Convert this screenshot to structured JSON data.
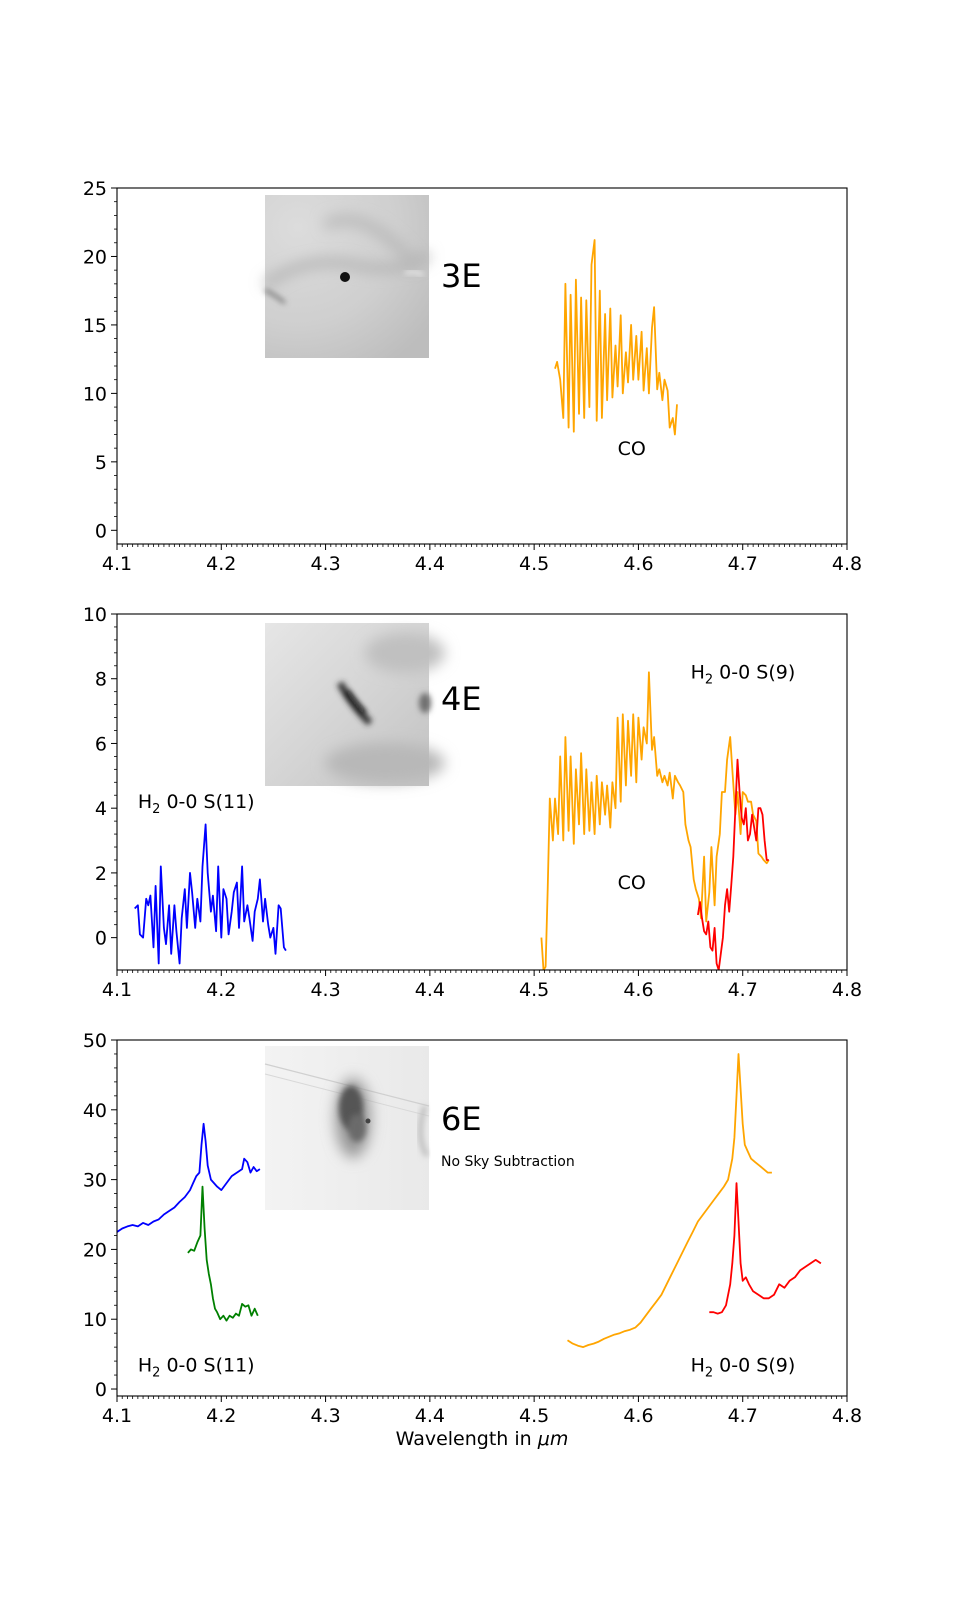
{
  "xlabel_prefix": "Wavelength in ",
  "xlabel_unit": "μm",
  "colors": {
    "orange": "#ffa500",
    "blue": "#0000ff",
    "red": "#ff0000",
    "green": "#008000"
  },
  "chart_data": [
    {
      "type": "line",
      "panel": "3E",
      "xlim": [
        4.1,
        4.8
      ],
      "ylim": [
        -1,
        25
      ],
      "xticks": [
        "4.1",
        "4.2",
        "4.3",
        "4.4",
        "4.5",
        "4.6",
        "4.7",
        "4.8"
      ],
      "yticks": [
        "0",
        "5",
        "10",
        "15",
        "20",
        "25"
      ],
      "label": "3E",
      "note": "",
      "annotations": [
        {
          "key": "co",
          "text": "CO",
          "x": 4.58,
          "y": 5.5
        }
      ],
      "series": [
        {
          "name": "CO",
          "color": "orange",
          "x": [
            4.52,
            4.522,
            4.525,
            4.528,
            4.53,
            4.533,
            4.535,
            4.538,
            4.54,
            4.543,
            4.545,
            4.548,
            4.55,
            4.553,
            4.555,
            4.558,
            4.56,
            4.563,
            4.565,
            4.568,
            4.57,
            4.573,
            4.575,
            4.578,
            4.58,
            4.583,
            4.585,
            4.588,
            4.59,
            4.593,
            4.595,
            4.598,
            4.6,
            4.603,
            4.605,
            4.608,
            4.61,
            4.613,
            4.615,
            4.618,
            4.62,
            4.623,
            4.625,
            4.628,
            4.63,
            4.633,
            4.635,
            4.637
          ],
          "y": [
            11.8,
            12.3,
            11.0,
            8.2,
            18.0,
            7.5,
            17.2,
            7.2,
            18.3,
            8.5,
            17.0,
            8.2,
            16.8,
            9.0,
            19.4,
            21.2,
            8.0,
            17.5,
            8.2,
            15.8,
            9.5,
            16.2,
            9.7,
            13.5,
            10.5,
            15.7,
            10.0,
            13.0,
            10.8,
            15.0,
            11.0,
            14.2,
            11.0,
            14.5,
            10.2,
            13.3,
            10.0,
            14.8,
            16.3,
            10.3,
            11.5,
            9.5,
            11.0,
            10.2,
            7.5,
            8.2,
            7.0,
            9.2
          ]
        }
      ]
    },
    {
      "type": "line",
      "panel": "4E",
      "xlim": [
        4.1,
        4.8
      ],
      "ylim": [
        -1,
        10
      ],
      "xticks": [
        "4.1",
        "4.2",
        "4.3",
        "4.4",
        "4.5",
        "4.6",
        "4.7",
        "4.8"
      ],
      "yticks": [
        "0",
        "2",
        "4",
        "6",
        "8",
        "10"
      ],
      "label": "4E",
      "note": "",
      "annotations": [
        {
          "key": "s9",
          "text": "H",
          "sub": "2",
          "rest": " 0-0 S(9)",
          "x": 4.65,
          "y": 8.0
        },
        {
          "key": "s11",
          "text": "H",
          "sub": "2",
          "rest": " 0-0 S(11)",
          "x": 4.12,
          "y": 4.0
        },
        {
          "key": "co",
          "text": "CO",
          "x": 4.58,
          "y": 1.5
        }
      ],
      "series": [
        {
          "name": "H2 0-0 S(11)",
          "color": "blue",
          "x": [
            4.117,
            4.12,
            4.122,
            4.125,
            4.128,
            4.13,
            4.132,
            4.135,
            4.137,
            4.14,
            4.142,
            4.145,
            4.147,
            4.15,
            4.152,
            4.155,
            4.157,
            4.16,
            4.162,
            4.165,
            4.167,
            4.17,
            4.172,
            4.175,
            4.177,
            4.18,
            4.182,
            4.185,
            4.187,
            4.19,
            4.192,
            4.195,
            4.197,
            4.2,
            4.202,
            4.205,
            4.207,
            4.21,
            4.212,
            4.215,
            4.217,
            4.22,
            4.222,
            4.225,
            4.227,
            4.23,
            4.232,
            4.235,
            4.237,
            4.24,
            4.242,
            4.245,
            4.247,
            4.25,
            4.252,
            4.255,
            4.257,
            4.26,
            4.262
          ],
          "y": [
            0.9,
            1.0,
            0.1,
            0.0,
            1.2,
            1.0,
            1.3,
            -0.3,
            1.6,
            -0.8,
            2.2,
            0.3,
            -0.2,
            1.0,
            -0.5,
            1.0,
            0.2,
            -0.8,
            0.6,
            1.5,
            0.3,
            2.0,
            1.4,
            0.3,
            1.2,
            0.5,
            2.2,
            3.5,
            2.0,
            0.8,
            1.3,
            0.2,
            2.2,
            0.0,
            1.5,
            1.2,
            0.1,
            0.8,
            1.4,
            1.7,
            0.3,
            2.2,
            0.5,
            1.0,
            0.6,
            -0.1,
            0.8,
            1.2,
            1.8,
            0.5,
            1.2,
            0.4,
            0.0,
            0.3,
            -0.5,
            1.0,
            0.9,
            -0.3,
            -0.4
          ]
        },
        {
          "name": "CO",
          "color": "orange",
          "x": [
            4.507,
            4.509,
            4.511,
            4.513,
            4.515,
            4.518,
            4.52,
            4.523,
            4.525,
            4.528,
            4.53,
            4.533,
            4.535,
            4.538,
            4.54,
            4.543,
            4.545,
            4.548,
            4.55,
            4.553,
            4.555,
            4.558,
            4.56,
            4.563,
            4.565,
            4.568,
            4.57,
            4.573,
            4.575,
            4.578,
            4.58,
            4.583,
            4.585,
            4.588,
            4.59,
            4.593,
            4.595,
            4.598,
            4.6,
            4.603,
            4.605,
            4.608,
            4.61,
            4.613,
            4.615,
            4.618,
            4.62,
            4.623,
            4.625,
            4.628,
            4.63,
            4.633,
            4.635,
            4.638,
            4.64,
            4.643,
            4.645,
            4.648,
            4.65,
            4.653,
            4.655,
            4.658,
            4.66,
            4.663,
            4.665,
            4.668,
            4.67,
            4.673,
            4.675,
            4.678,
            4.68,
            4.683,
            4.685,
            4.688,
            4.69,
            4.693,
            4.695,
            4.698,
            4.7,
            4.703,
            4.705,
            4.708,
            4.71,
            4.713,
            4.715,
            4.718,
            4.72,
            4.723,
            4.725
          ],
          "y": [
            0.0,
            -1.0,
            -0.9,
            1.5,
            4.3,
            3.0,
            4.3,
            3.2,
            5.6,
            3.0,
            6.2,
            3.3,
            5.6,
            2.9,
            5.2,
            3.5,
            5.7,
            3.2,
            5.2,
            3.3,
            4.8,
            3.2,
            5.0,
            3.5,
            4.8,
            3.8,
            4.7,
            3.4,
            4.8,
            4.0,
            6.8,
            4.2,
            6.9,
            4.7,
            6.7,
            5.0,
            6.9,
            4.8,
            6.8,
            5.5,
            6.5,
            6.0,
            8.2,
            5.8,
            6.2,
            5.0,
            5.2,
            4.8,
            5.0,
            4.7,
            5.1,
            4.3,
            5.0,
            4.8,
            4.7,
            4.5,
            3.5,
            3.0,
            2.8,
            1.8,
            1.5,
            1.2,
            0.6,
            2.5,
            0.5,
            1.4,
            2.8,
            1.0,
            2.5,
            3.2,
            4.5,
            4.5,
            5.5,
            6.2,
            5.2,
            3.8,
            4.5,
            3.2,
            4.5,
            4.4,
            4.2,
            4.2,
            3.8,
            3.6,
            2.6,
            2.5,
            2.4,
            2.3,
            2.4
          ]
        },
        {
          "name": "H2 0-0 S(9)",
          "color": "red",
          "x": [
            4.657,
            4.659,
            4.661,
            4.663,
            4.665,
            4.667,
            4.669,
            4.671,
            4.673,
            4.675,
            4.677,
            4.679,
            4.681,
            4.683,
            4.685,
            4.687,
            4.689,
            4.691,
            4.693,
            4.695,
            4.697,
            4.699,
            4.701,
            4.703,
            4.705,
            4.707,
            4.709,
            4.711,
            4.713,
            4.715,
            4.717,
            4.719,
            4.721,
            4.723,
            4.725
          ],
          "y": [
            0.7,
            1.1,
            0.6,
            0.2,
            0.1,
            0.5,
            -0.3,
            -0.4,
            0.3,
            -0.8,
            -1.0,
            -0.5,
            0.0,
            1.0,
            1.5,
            0.8,
            1.6,
            2.5,
            4.0,
            5.5,
            4.5,
            3.7,
            3.5,
            4.0,
            3.0,
            3.2,
            3.8,
            3.4,
            3.0,
            4.0,
            4.0,
            3.8,
            3.0,
            2.4,
            2.4
          ]
        }
      ]
    },
    {
      "type": "line",
      "panel": "6E",
      "xlim": [
        4.1,
        4.8
      ],
      "ylim": [
        -1,
        50
      ],
      "xticks": [
        "4.1",
        "4.2",
        "4.3",
        "4.4",
        "4.5",
        "4.6",
        "4.7",
        "4.8"
      ],
      "yticks": [
        "0",
        "10",
        "20",
        "30",
        "40",
        "50"
      ],
      "label": "6E",
      "note": "No Sky Subtraction",
      "annotations": [
        {
          "key": "s11",
          "text": "H",
          "sub": "2",
          "rest": " 0-0 S(11)",
          "x": 4.12,
          "y": 2.5
        },
        {
          "key": "s9",
          "text": "H",
          "sub": "2",
          "rest": " 0-0 S(9)",
          "x": 4.65,
          "y": 2.5
        }
      ],
      "series": [
        {
          "name": "H2 0-0 S(11) blue",
          "color": "blue",
          "x": [
            4.1,
            4.105,
            4.11,
            4.115,
            4.12,
            4.125,
            4.13,
            4.135,
            4.14,
            4.145,
            4.15,
            4.155,
            4.16,
            4.165,
            4.17,
            4.173,
            4.176,
            4.179,
            4.181,
            4.183,
            4.185,
            4.187,
            4.19,
            4.193,
            4.196,
            4.2,
            4.205,
            4.21,
            4.215,
            4.22,
            4.222,
            4.225,
            4.228,
            4.231,
            4.234,
            4.237
          ],
          "y": [
            22.5,
            23.0,
            23.3,
            23.5,
            23.3,
            23.8,
            23.5,
            24.0,
            24.3,
            25.0,
            25.5,
            26.0,
            26.8,
            27.5,
            28.5,
            29.5,
            30.5,
            31.0,
            35.0,
            38.0,
            35.5,
            32.0,
            30.0,
            29.5,
            29.0,
            28.5,
            29.5,
            30.5,
            31.0,
            31.5,
            33.0,
            32.5,
            31.0,
            31.8,
            31.2,
            31.5
          ]
        },
        {
          "name": "H2 0-0 S(11) green",
          "color": "green",
          "x": [
            4.168,
            4.171,
            4.174,
            4.177,
            4.18,
            4.182,
            4.184,
            4.186,
            4.188,
            4.19,
            4.192,
            4.194,
            4.196,
            4.199,
            4.202,
            4.205,
            4.208,
            4.211,
            4.214,
            4.217,
            4.22,
            4.223,
            4.226,
            4.229,
            4.232,
            4.235
          ],
          "y": [
            19.5,
            20.0,
            19.8,
            21.0,
            22.0,
            29.0,
            23.0,
            18.5,
            16.5,
            15.0,
            13.0,
            11.5,
            11.0,
            10.0,
            10.5,
            9.8,
            10.5,
            10.2,
            10.8,
            10.5,
            12.2,
            11.8,
            12.0,
            10.5,
            11.5,
            10.5
          ]
        },
        {
          "name": "CO orange",
          "color": "orange",
          "x": [
            4.532,
            4.537,
            4.542,
            4.547,
            4.552,
            4.557,
            4.562,
            4.567,
            4.572,
            4.577,
            4.582,
            4.587,
            4.592,
            4.597,
            4.602,
            4.607,
            4.612,
            4.617,
            4.622,
            4.627,
            4.632,
            4.637,
            4.642,
            4.647,
            4.652,
            4.657,
            4.662,
            4.667,
            4.672,
            4.677,
            4.682,
            4.686,
            4.69,
            4.692,
            4.694,
            4.696,
            4.698,
            4.7,
            4.702,
            4.705,
            4.708,
            4.712,
            4.716,
            4.72,
            4.724,
            4.728
          ],
          "y": [
            7.0,
            6.5,
            6.2,
            6.0,
            6.3,
            6.5,
            6.8,
            7.2,
            7.5,
            7.8,
            8.0,
            8.3,
            8.5,
            8.8,
            9.5,
            10.5,
            11.5,
            12.5,
            13.5,
            15.0,
            16.5,
            18.0,
            19.5,
            21.0,
            22.5,
            24.0,
            25.0,
            26.0,
            27.0,
            28.0,
            29.0,
            30.0,
            33.0,
            36.0,
            42.0,
            48.0,
            43.0,
            38.0,
            35.0,
            34.0,
            33.0,
            32.5,
            32.0,
            31.5,
            31.0,
            31.0
          ]
        },
        {
          "name": "H2 0-0 S(9) red",
          "color": "red",
          "x": [
            4.668,
            4.672,
            4.676,
            4.68,
            4.684,
            4.688,
            4.69,
            4.692,
            4.694,
            4.696,
            4.698,
            4.7,
            4.703,
            4.706,
            4.71,
            4.715,
            4.72,
            4.725,
            4.73,
            4.735,
            4.74,
            4.745,
            4.75,
            4.755,
            4.76,
            4.765,
            4.77,
            4.775
          ],
          "y": [
            11.0,
            11.0,
            10.8,
            11.0,
            12.0,
            15.0,
            18.0,
            22.0,
            29.5,
            24.0,
            18.0,
            15.5,
            16.0,
            15.0,
            14.0,
            13.5,
            13.0,
            13.0,
            13.5,
            15.0,
            14.5,
            15.5,
            16.0,
            17.0,
            17.5,
            18.0,
            18.5,
            18.0
          ]
        }
      ]
    }
  ]
}
